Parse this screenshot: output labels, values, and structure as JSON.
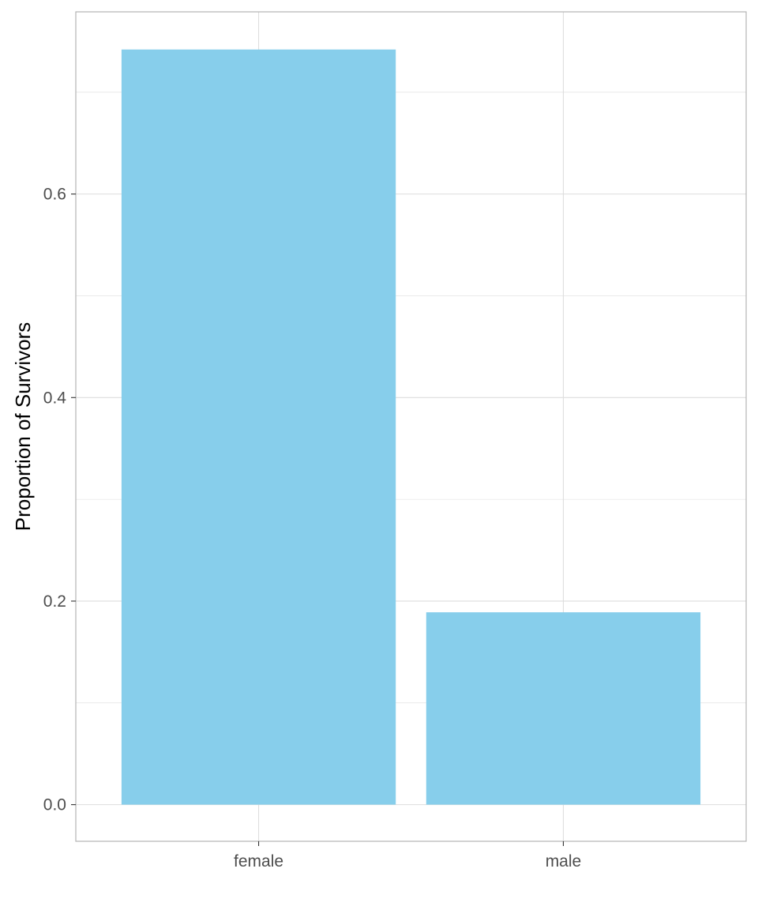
{
  "chart_data": {
    "type": "bar",
    "title": "",
    "xlabel": "",
    "ylabel": "Proportion of Survivors",
    "categories": [
      "female",
      "male"
    ],
    "values": [
      0.742,
      0.189
    ],
    "ylim": [
      -0.036,
      0.779
    ],
    "yticks": [
      0.0,
      0.2,
      0.4,
      0.6
    ],
    "ytick_labels": [
      "0.0",
      "0.2",
      "0.4",
      "0.6"
    ],
    "minor_yticks": [
      0.1,
      0.3,
      0.5,
      0.7
    ],
    "grid": true,
    "legend": "none",
    "bar_color": "#87CEEB",
    "grid_color": "#dedede",
    "panel_border_color": "#b3b3b3"
  }
}
